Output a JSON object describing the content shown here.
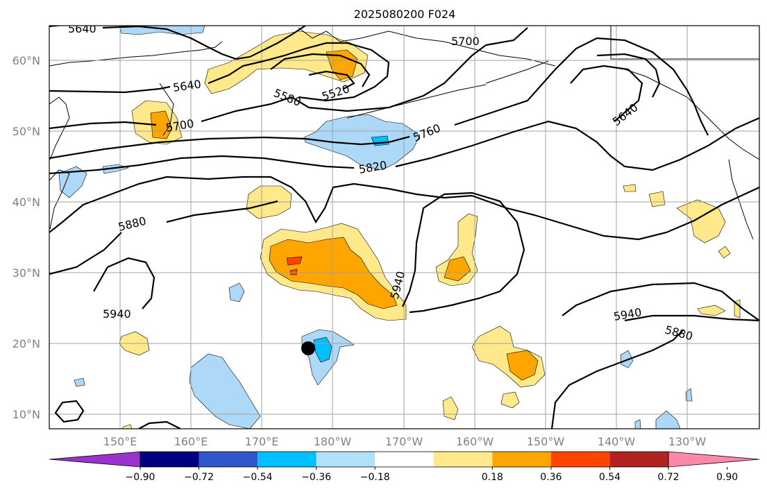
{
  "title": "2025080200 F024",
  "lat_ticks": [
    "60°N",
    "50°N",
    "40°N",
    "30°N",
    "20°N",
    "10°N"
  ],
  "lon_ticks": [
    "150°E",
    "160°E",
    "170°E",
    "180°W",
    "170°W",
    "160°W",
    "150°W",
    "140°W",
    "130°W"
  ],
  "contour_labels": [
    "5640",
    "5700",
    "5640",
    "5580",
    "5520",
    "5700",
    "5640",
    "5760",
    "5820",
    "5880",
    "5940",
    "5940",
    "5940",
    "5880"
  ],
  "colorbar": {
    "tick_labels": [
      "−0.90",
      "−0.72",
      "−0.54",
      "−0.36",
      "−0.18",
      "0.18",
      "0.36",
      "0.54",
      "0.72",
      "0.90"
    ],
    "colors": [
      "#9933cc",
      "#000080",
      "#3355cc",
      "#00bfff",
      "#b0e0fa",
      "#ffffff",
      "#ffe98a",
      "#ffa500",
      "#ff4500",
      "#b22222",
      "#ff88aa"
    ]
  },
  "colors": {
    "light_blue": "#add8f7",
    "blue": "#00bfff",
    "yellow": "#ffe98a",
    "orange": "#ffa500",
    "red": "#ff4500"
  },
  "marker": "black-dot"
}
